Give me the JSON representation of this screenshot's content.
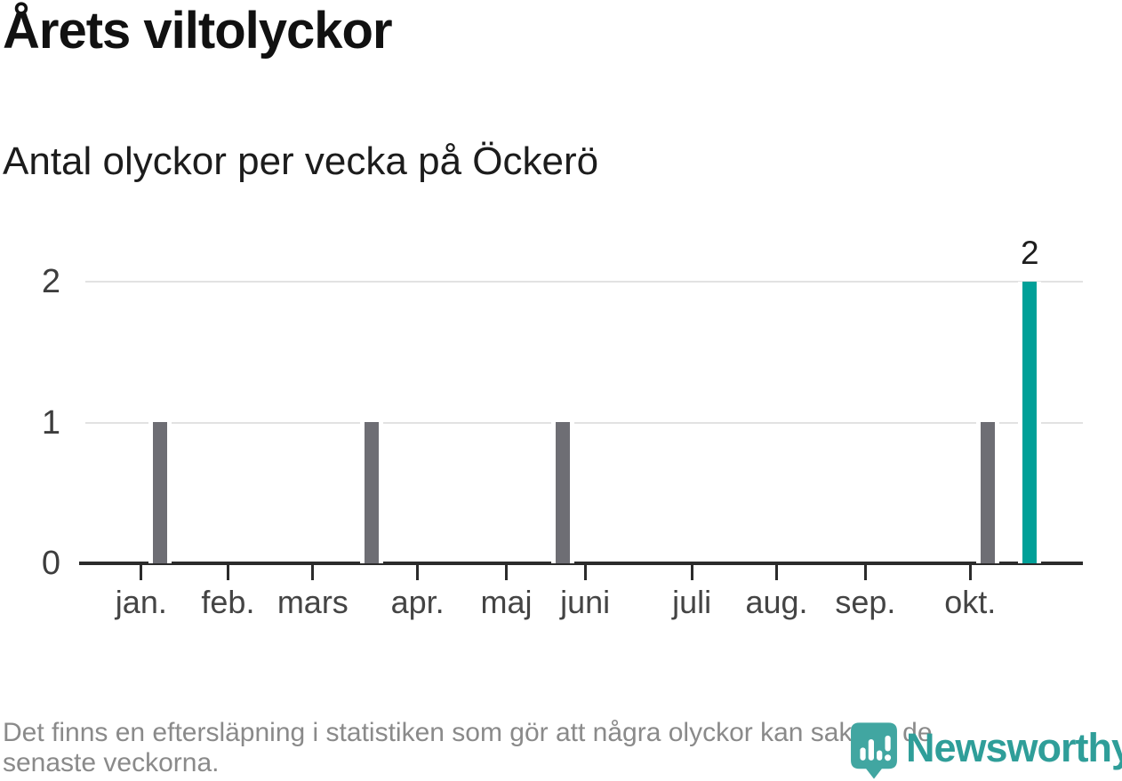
{
  "header": {
    "title": "Årets viltolyckor",
    "subtitle": "Antal olyckor per vecka på Öckerö"
  },
  "footer": {
    "note": "Det finns en eftersläpning i statistiken som gör att några olyckor kan saknas de senaste veckorna.",
    "lines": [
      "Det finns en eftersläpning i statistiken som gör att några olyckor kan saknas de",
      "senaste veckorna."
    ]
  },
  "logo": {
    "wordmark": "Newsworthy",
    "icon": "newsworthy-pin-barchart-icon"
  },
  "colors": {
    "bar_default": "#6e6e74",
    "bar_highlight": "#00a098",
    "gridline": "#e2e2e2",
    "axis": "#2b2b2b",
    "title_text": "#111111",
    "footer_text": "#8a8a8a",
    "brand_teal_icon": "#41a6a1",
    "brand_teal_text": "#2f9e99"
  },
  "chart_data": {
    "type": "bar",
    "title": "Årets viltolyckor",
    "subtitle": "Antal olyckor per vecka på Öckerö",
    "x_unit": "week",
    "n_week_slots": 47,
    "ylim": [
      0,
      2
    ],
    "yticks": [
      0,
      1,
      2
    ],
    "grid": "horizontal",
    "legend": "none",
    "bars": [
      {
        "week_slot": 3,
        "value": 1,
        "highlight": false,
        "data_label": ""
      },
      {
        "week_slot": 13,
        "value": 1,
        "highlight": false,
        "data_label": ""
      },
      {
        "week_slot": 22,
        "value": 1,
        "highlight": false,
        "data_label": ""
      },
      {
        "week_slot": 42,
        "value": 1,
        "highlight": false,
        "data_label": ""
      },
      {
        "week_slot": 44,
        "value": 2,
        "highlight": true,
        "data_label": "2"
      }
    ],
    "month_ticks": [
      {
        "label": "jan.",
        "pos_pct": 5.6
      },
      {
        "label": "feb.",
        "pos_pct": 14.3
      },
      {
        "label": "mars",
        "pos_pct": 22.8
      },
      {
        "label": "apr.",
        "pos_pct": 33.3
      },
      {
        "label": "maj",
        "pos_pct": 42.2
      },
      {
        "label": "juni",
        "pos_pct": 50.1
      },
      {
        "label": "juli",
        "pos_pct": 60.8
      },
      {
        "label": "aug.",
        "pos_pct": 69.3
      },
      {
        "label": "sep.",
        "pos_pct": 78.2
      },
      {
        "label": "okt.",
        "pos_pct": 88.7
      }
    ]
  }
}
